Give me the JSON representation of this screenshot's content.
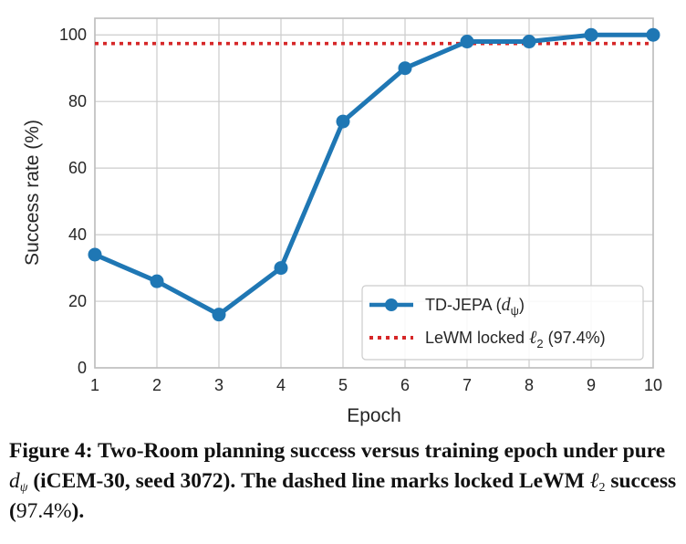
{
  "chart_data": {
    "type": "line",
    "xlabel": "Epoch",
    "ylabel": "Success rate (%)",
    "x": [
      1,
      2,
      3,
      4,
      5,
      6,
      7,
      8,
      9,
      10
    ],
    "xlim": [
      1,
      10
    ],
    "ylim": [
      0,
      105
    ],
    "xticks": [
      "1",
      "2",
      "3",
      "4",
      "5",
      "6",
      "7",
      "8",
      "9",
      "10"
    ],
    "yticks": [
      0,
      20,
      40,
      60,
      80,
      100
    ],
    "grid": true,
    "legend_position": "lower-right",
    "series": [
      {
        "name": "TD-JEPA (dψ)",
        "values": [
          34,
          26,
          16,
          30,
          74,
          90,
          98,
          98,
          100,
          100
        ],
        "color": "#1f77b4",
        "style": "solid-with-markers"
      },
      {
        "name": "LeWM locked ℓ2 (97.4%)",
        "values": [
          97.4,
          97.4,
          97.4,
          97.4,
          97.4,
          97.4,
          97.4,
          97.4,
          97.4,
          97.4
        ],
        "color": "#d62728",
        "style": "dotted"
      }
    ]
  },
  "legend": {
    "series1_prefix": "TD-JEPA (",
    "series1_symbol": "d",
    "series1_sub": "ψ",
    "series1_suffix": ")",
    "series2_prefix": "LeWM locked ",
    "series2_symbol": "ℓ",
    "series2_sub": "2",
    "series2_suffix": " (97.4%)"
  },
  "caption": {
    "part1": "Figure 4: Two-Room planning success versus training epoch under pure ",
    "symbol": "d",
    "symbol_sub": "ψ",
    "part2": " (iCEM-30, seed 3072). The dashed line marks locked LeWM ",
    "ell": "ℓ",
    "ell_sub": "2",
    "part3": " success (",
    "value": "97.4%",
    "part4": ")."
  }
}
